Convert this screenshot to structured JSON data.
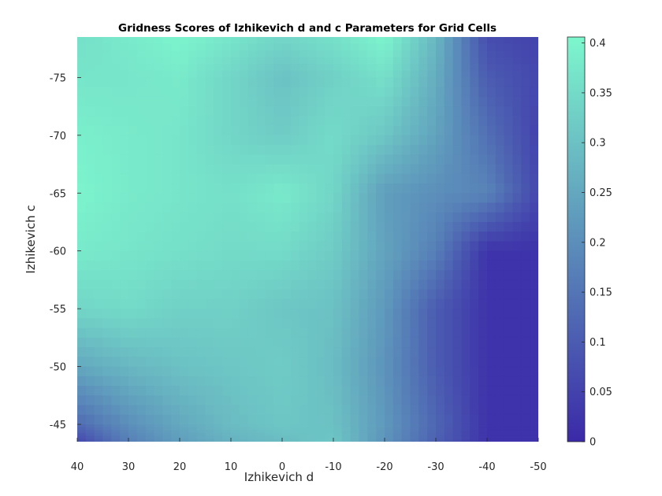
{
  "chart_data": {
    "type": "heatmap",
    "title": "Gridness Scores of Izhikevich d and c Parameters for Grid Cells",
    "xlabel": "Izhikevich d",
    "ylabel": "Izhikevich c",
    "x_ticks": [
      "40",
      "30",
      "20",
      "10",
      "0",
      "-10",
      "-20",
      "-30",
      "-40",
      "-50"
    ],
    "y_ticks": [
      "-75",
      "-70",
      "-65",
      "-60",
      "-55",
      "-50",
      "-45"
    ],
    "x_values": [
      40,
      30,
      20,
      10,
      0,
      -10,
      -20,
      -30,
      -40,
      -50
    ],
    "y_values": [
      -78.5,
      -75,
      -70,
      -65,
      -60,
      -55,
      -50,
      -45,
      -43.5
    ],
    "xlim": [
      40,
      -50
    ],
    "ylim": [
      -78.5,
      -43.5
    ],
    "x_direction": "reversed",
    "y_direction": "reversed",
    "z": [
      [
        0.36,
        0.38,
        0.4,
        0.37,
        0.34,
        0.36,
        0.4,
        0.28,
        0.07,
        0.05
      ],
      [
        0.37,
        0.37,
        0.38,
        0.34,
        0.3,
        0.33,
        0.36,
        0.26,
        0.1,
        0.06
      ],
      [
        0.39,
        0.38,
        0.37,
        0.34,
        0.32,
        0.35,
        0.31,
        0.24,
        0.14,
        0.05
      ],
      [
        0.4,
        0.38,
        0.37,
        0.36,
        0.38,
        0.34,
        0.23,
        0.2,
        0.18,
        0.06
      ],
      [
        0.38,
        0.37,
        0.36,
        0.35,
        0.35,
        0.32,
        0.24,
        0.17,
        0.02,
        0.02
      ],
      [
        0.34,
        0.35,
        0.33,
        0.33,
        0.31,
        0.3,
        0.22,
        0.1,
        0.02,
        0.02
      ],
      [
        0.25,
        0.28,
        0.3,
        0.31,
        0.32,
        0.29,
        0.21,
        0.1,
        0.02,
        0.02
      ],
      [
        0.13,
        0.2,
        0.25,
        0.29,
        0.31,
        0.3,
        0.22,
        0.12,
        0.02,
        0.02
      ],
      [
        0.06,
        0.17,
        0.23,
        0.27,
        0.29,
        0.31,
        0.21,
        0.11,
        0.02,
        0.02
      ]
    ],
    "colorbar": {
      "ticks": [
        "0",
        "0.05",
        "0.1",
        "0.15",
        "0.2",
        "0.25",
        "0.3",
        "0.35",
        "0.4"
      ],
      "tick_values": [
        0,
        0.05,
        0.1,
        0.15,
        0.2,
        0.25,
        0.3,
        0.35,
        0.4
      ],
      "range": [
        0,
        0.406
      ],
      "color_low": "#3b29a8",
      "color_high": "#7df7cd"
    },
    "grid": false
  }
}
